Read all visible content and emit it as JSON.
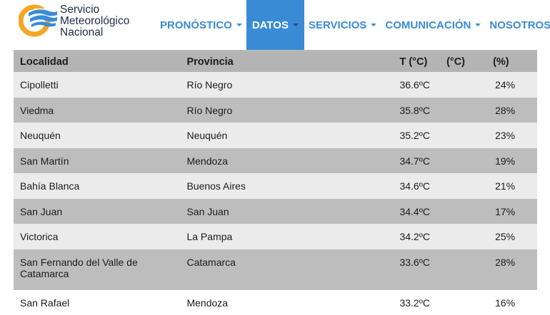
{
  "brand": {
    "line1": "Servicio",
    "line2": "Meteorológico",
    "line3": "Nacional",
    "colors": {
      "blue": "#3a8bd6",
      "orange": "#f5a623",
      "navy": "#1f2a44"
    }
  },
  "nav": {
    "items": [
      {
        "label": "PRONÓSTICO",
        "active": false
      },
      {
        "label": "DATOS",
        "active": true
      },
      {
        "label": "SERVICIOS",
        "active": false
      },
      {
        "label": "COMUNICACIÓN",
        "active": false
      },
      {
        "label": "NOSOTROS",
        "active": false
      }
    ],
    "caret_icon": "chevron-down-icon"
  },
  "table": {
    "headers": [
      "Localidad",
      "Provincia",
      "T (°C)",
      "(°C)",
      "(%)"
    ],
    "rows": [
      {
        "localidad": "Cipolletti",
        "provincia": "Río Negro",
        "temp": "36.6ºC",
        "extra": "",
        "humidity": "24%"
      },
      {
        "localidad": "Viedma",
        "provincia": "Río Negro",
        "temp": "35.8ºC",
        "extra": "",
        "humidity": "28%"
      },
      {
        "localidad": "Neuquén",
        "provincia": "Neuquén",
        "temp": "35.2ºC",
        "extra": "",
        "humidity": "23%"
      },
      {
        "localidad": "San Martín",
        "provincia": "Mendoza",
        "temp": "34.7ºC",
        "extra": "",
        "humidity": "19%"
      },
      {
        "localidad": "Bahía Blanca",
        "provincia": "Buenos Aires",
        "temp": "34.6ºC",
        "extra": "",
        "humidity": "21%"
      },
      {
        "localidad": "San Juan",
        "provincia": "San Juan",
        "temp": "34.4ºC",
        "extra": "",
        "humidity": "17%"
      },
      {
        "localidad": "Victorica",
        "provincia": "La Pampa",
        "temp": "34.2ºC",
        "extra": "",
        "humidity": "25%"
      },
      {
        "localidad": "San Fernando del Valle de Catamarca",
        "provincia": "Catamarca",
        "temp": "33.6ºC",
        "extra": "",
        "humidity": "28%"
      },
      {
        "localidad": "San Rafael",
        "provincia": "Mendoza",
        "temp": "33.2ºC",
        "extra": "",
        "humidity": "16%"
      }
    ]
  }
}
